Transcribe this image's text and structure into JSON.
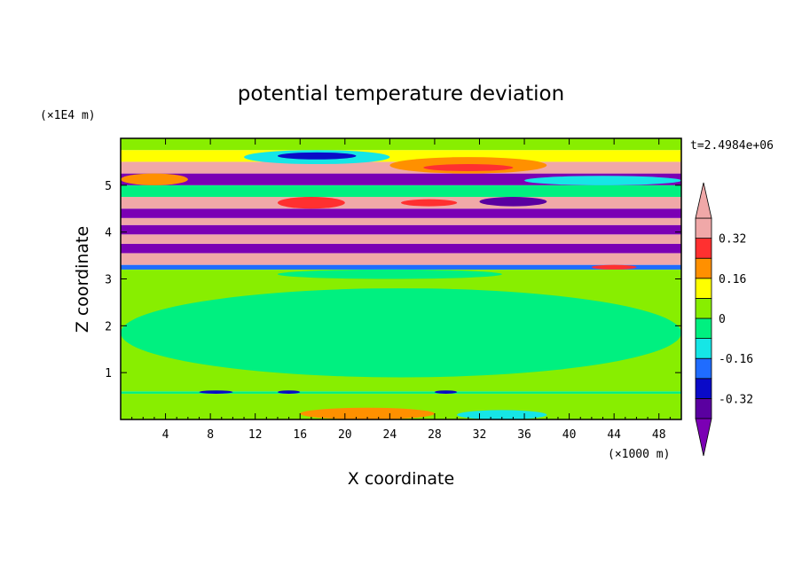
{
  "chart_data": {
    "type": "heatmap",
    "title": "potential temperature deviation",
    "xlabel": "X coordinate",
    "ylabel": "Z coordinate",
    "x_unit": "(×1000 m)",
    "y_unit": "(×1E4 m)",
    "time_label": "t=2.4984e+06",
    "xlim": [
      0,
      50
    ],
    "ylim": [
      0,
      6
    ],
    "x_ticks": [
      "4",
      "8",
      "12",
      "16",
      "20",
      "24",
      "28",
      "32",
      "36",
      "40",
      "44",
      "48"
    ],
    "y_ticks": [
      "1",
      "2",
      "3",
      "4",
      "5"
    ],
    "colorbar": {
      "levels": [
        -0.4,
        -0.32,
        -0.24,
        -0.16,
        -0.08,
        0,
        0.08,
        0.16,
        0.24,
        0.32,
        0.4
      ],
      "tick_labels": [
        "0.32",
        "0.16",
        "0",
        "-0.16",
        "-0.32"
      ],
      "tick_values": [
        0.32,
        0.16,
        0,
        -0.16,
        -0.32
      ],
      "colors": [
        "#7b00b4",
        "#5a00a0",
        "#0a0ac8",
        "#1f6cff",
        "#16e6e6",
        "#00f080",
        "#88ee00",
        "#ffff00",
        "#ff9000",
        "#ff3030",
        "#f0a8a8"
      ],
      "extend": "both"
    },
    "bands": [
      {
        "z0": 0.0,
        "z1": 0.55,
        "color": "#88ee00"
      },
      {
        "z0": 0.55,
        "z1": 0.6,
        "color": "#00f080"
      },
      {
        "z0": 0.6,
        "z1": 3.2,
        "color": "#88ee00"
      },
      {
        "z0": 3.2,
        "z1": 3.3,
        "color": "#1f6cff"
      },
      {
        "z0": 3.3,
        "z1": 3.55,
        "color": "#f0a8a8"
      },
      {
        "z0": 3.55,
        "z1": 3.75,
        "color": "#7b00b4"
      },
      {
        "z0": 3.75,
        "z1": 3.95,
        "color": "#f0a8a8"
      },
      {
        "z0": 3.95,
        "z1": 4.15,
        "color": "#7b00b4"
      },
      {
        "z0": 4.15,
        "z1": 4.3,
        "color": "#f0a8a8"
      },
      {
        "z0": 4.3,
        "z1": 4.5,
        "color": "#7b00b4"
      },
      {
        "z0": 4.5,
        "z1": 4.75,
        "color": "#f0a8a8"
      },
      {
        "z0": 4.75,
        "z1": 5.0,
        "color": "#00f080"
      },
      {
        "z0": 5.0,
        "z1": 5.25,
        "color": "#7b00b4"
      },
      {
        "z0": 5.25,
        "z1": 5.5,
        "color": "#f0a8a8"
      },
      {
        "z0": 5.5,
        "z1": 5.75,
        "color": "#ffff00"
      },
      {
        "z0": 5.75,
        "z1": 6.0,
        "color": "#88ee00"
      }
    ],
    "features": [
      {
        "x0": 0,
        "x1": 50,
        "z0": 0.9,
        "z1": 2.8,
        "color": "#00f080"
      },
      {
        "x0": 14,
        "x1": 34,
        "z0": 3.0,
        "z1": 3.2,
        "color": "#00f080"
      },
      {
        "x0": 16,
        "x1": 28,
        "z0": 0.0,
        "z1": 0.25,
        "color": "#ff9000"
      },
      {
        "x0": 30,
        "x1": 38,
        "z0": 0.0,
        "z1": 0.2,
        "color": "#16e6e6"
      },
      {
        "x0": 7,
        "x1": 10,
        "z0": 0.55,
        "z1": 0.62,
        "color": "#0a0ac8"
      },
      {
        "x0": 14,
        "x1": 16,
        "z0": 0.55,
        "z1": 0.62,
        "color": "#0a0ac8"
      },
      {
        "x0": 28,
        "x1": 30,
        "z0": 0.55,
        "z1": 0.62,
        "color": "#0a0ac8"
      },
      {
        "x0": 11,
        "x1": 24,
        "z0": 5.45,
        "z1": 5.75,
        "color": "#16e6e6"
      },
      {
        "x0": 14,
        "x1": 21,
        "z0": 5.55,
        "z1": 5.7,
        "color": "#0a0ac8"
      },
      {
        "x0": 24,
        "x1": 38,
        "z0": 5.25,
        "z1": 5.6,
        "color": "#ff9000"
      },
      {
        "x0": 27,
        "x1": 35,
        "z0": 5.3,
        "z1": 5.45,
        "color": "#ff3030"
      },
      {
        "x0": 0,
        "x1": 6,
        "z0": 5.0,
        "z1": 5.25,
        "color": "#ff9000"
      },
      {
        "x0": 36,
        "x1": 50,
        "z0": 5.0,
        "z1": 5.2,
        "color": "#16e6e6"
      },
      {
        "x0": 14,
        "x1": 20,
        "z0": 4.5,
        "z1": 4.75,
        "color": "#ff3030"
      },
      {
        "x0": 25,
        "x1": 30,
        "z0": 4.55,
        "z1": 4.7,
        "color": "#ff3030"
      },
      {
        "x0": 32,
        "x1": 38,
        "z0": 4.55,
        "z1": 4.75,
        "color": "#5a00a0"
      },
      {
        "x0": 42,
        "x1": 46,
        "z0": 3.2,
        "z1": 3.3,
        "color": "#ff3030"
      }
    ]
  }
}
